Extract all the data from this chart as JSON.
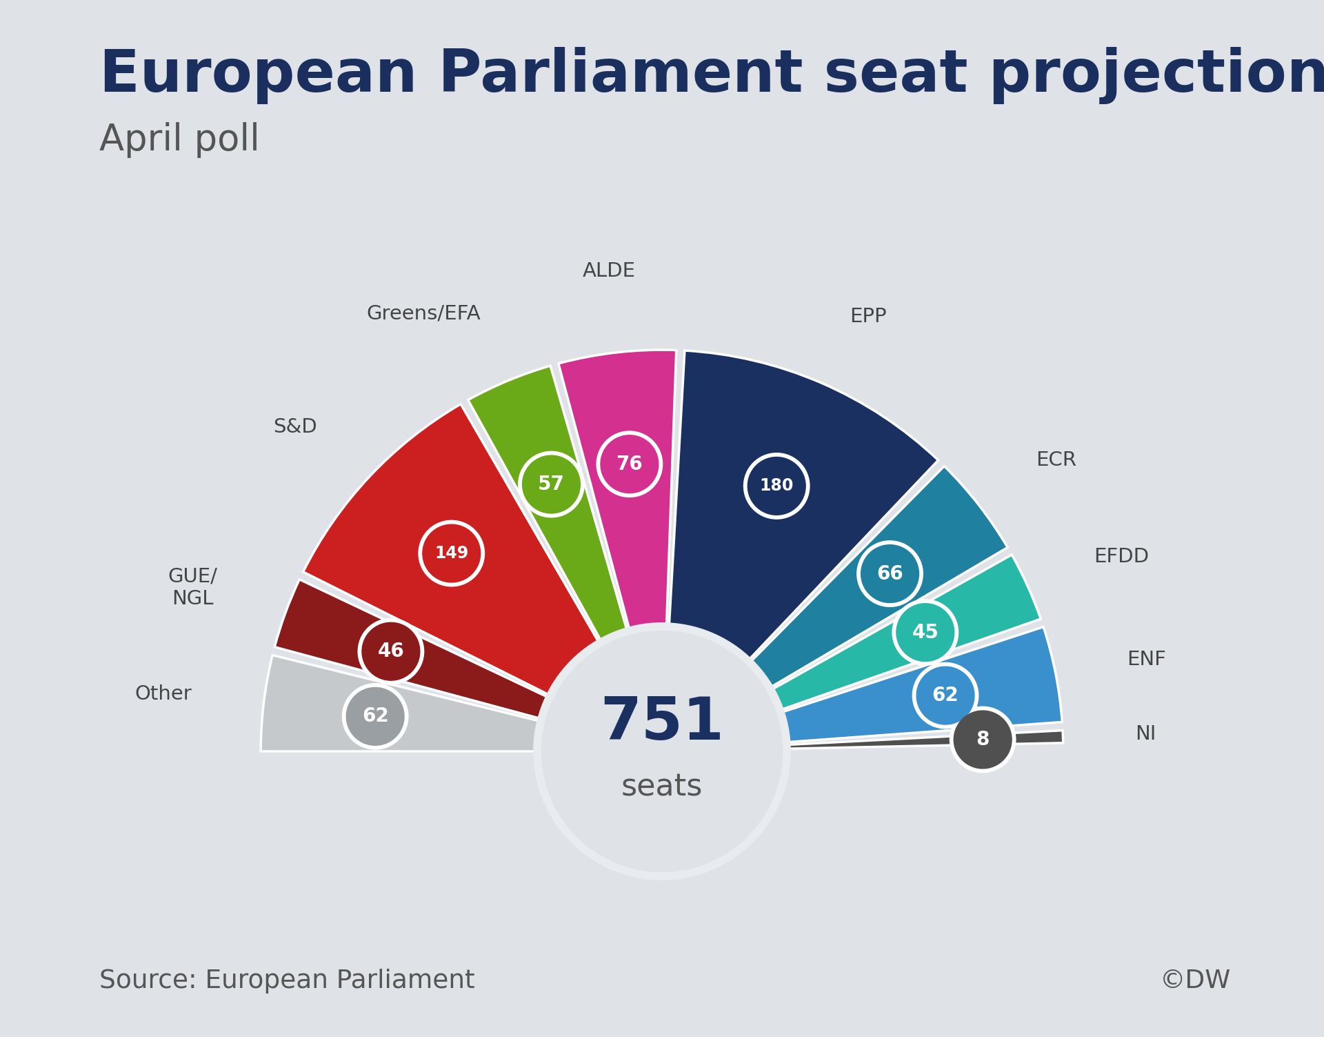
{
  "title": "European Parliament seat projection",
  "subtitle": "April poll",
  "total_seats": "751",
  "total_seats_label": "seats",
  "source": "Source: European Parliament",
  "copyright": "©DW",
  "background_color": "#dfe3e8",
  "inner_circle_color": "#dfe3e8",
  "parties": [
    {
      "name": "Other",
      "seats": 62,
      "color": "#c5c9cc",
      "bubble_color": "#9a9fa3"
    },
    {
      "name": "GUE/\nNGL",
      "seats": 46,
      "color": "#8b1a1a",
      "bubble_color": "#8b1a1a"
    },
    {
      "name": "S&D",
      "seats": 149,
      "color": "#cc2020",
      "bubble_color": "#cc2020"
    },
    {
      "name": "Greens/EFA",
      "seats": 57,
      "color": "#6aaa18",
      "bubble_color": "#6aaa18"
    },
    {
      "name": "ALDE",
      "seats": 76,
      "color": "#d43090",
      "bubble_color": "#d43090"
    },
    {
      "name": "EPP",
      "seats": 180,
      "color": "#1a3060",
      "bubble_color": "#1a3060"
    },
    {
      "name": "ECR",
      "seats": 66,
      "color": "#2080a0",
      "bubble_color": "#2080a0"
    },
    {
      "name": "EFDD",
      "seats": 45,
      "color": "#28b8a8",
      "bubble_color": "#28b8a8"
    },
    {
      "name": "ENF",
      "seats": 62,
      "color": "#3a90cc",
      "bubble_color": "#3a90cc"
    },
    {
      "name": "NI",
      "seats": 8,
      "color": "#505050",
      "bubble_color": "#505050"
    }
  ],
  "title_color": "#1a2f5e",
  "subtitle_color": "#555555",
  "label_text_color": "#444444",
  "center_number_color": "#1a3060",
  "center_label_color": "#555555"
}
